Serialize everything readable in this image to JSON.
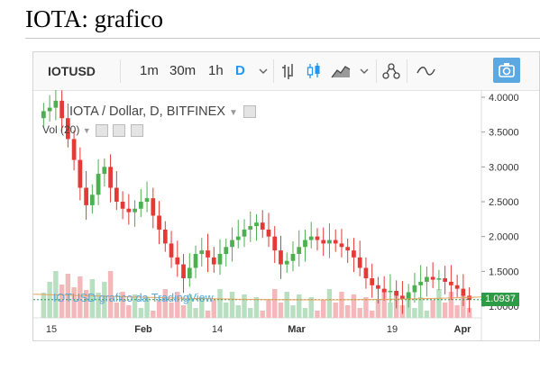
{
  "page": {
    "title": "IOTA: grafico"
  },
  "toolbar": {
    "symbol": "IOTUSD",
    "intervals": [
      "1m",
      "30m",
      "1h",
      "D"
    ],
    "active_interval": "D",
    "icons": [
      "chevron-down-icon",
      "bars-icon",
      "candles-icon",
      "area-chart-icon",
      "chevron-down-icon",
      "indicators-icon",
      "compare-icon",
      "camera-icon"
    ]
  },
  "legend": {
    "main": "IOTA / Dollar, D, BITFINEX",
    "volume": "Vol (20)"
  },
  "attribution": "IOTUSD grafico da TradingView",
  "last_price": "1.0937",
  "colors": {
    "up": "#4caf50",
    "down": "#e53935",
    "accent": "#2196f3",
    "price_line": "#2e9b47"
  },
  "chart_data": {
    "type": "candlestick",
    "y_ticks": [
      "4.0000",
      "3.5000",
      "3.0000",
      "2.5000",
      "2.0000",
      "1.5000",
      "1.0000"
    ],
    "ylim": [
      1.0,
      4.0
    ],
    "x_ticks": [
      "15",
      "Feb",
      "14",
      "Mar",
      "19",
      "Apr"
    ],
    "close_series": [
      3.8,
      3.85,
      3.95,
      3.7,
      3.4,
      3.1,
      2.7,
      2.45,
      2.6,
      2.9,
      3.0,
      2.7,
      2.5,
      2.4,
      2.35,
      2.4,
      2.5,
      2.55,
      2.3,
      2.1,
      1.9,
      1.7,
      1.6,
      1.4,
      1.55,
      1.75,
      1.8,
      1.7,
      1.6,
      1.75,
      1.85,
      1.95,
      2.0,
      2.1,
      2.15,
      2.2,
      2.1,
      2.0,
      1.8,
      1.6,
      1.65,
      1.75,
      1.85,
      1.95,
      2.0,
      1.95,
      1.9,
      1.95,
      1.9,
      1.85,
      1.8,
      1.7,
      1.55,
      1.4,
      1.3,
      1.25,
      1.2,
      1.22,
      1.15,
      1.1,
      1.2,
      1.3,
      1.35,
      1.42,
      1.38,
      1.4,
      1.35,
      1.3,
      1.25,
      1.15,
      1.09
    ]
  }
}
